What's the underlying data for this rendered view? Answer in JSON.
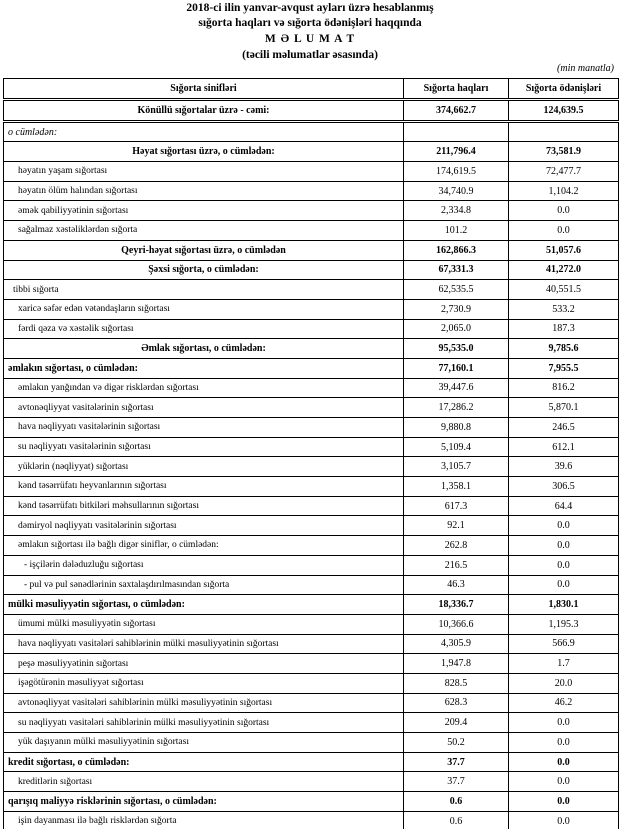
{
  "header": {
    "line1": "2018-ci ilin yanvar-avqust ayları üzrə hesablanmış",
    "line2": "sığorta haqları və sığorta ödənişləri haqqında",
    "line3": "M Ə L U M A T",
    "line4": "(təcili məlumatlar əsasında)",
    "unit": "(min manatla)"
  },
  "table": {
    "columns": [
      "Sığorta sinifləri",
      "Sığorta haqları",
      "Sığorta ödənişləri"
    ],
    "rows": [
      {
        "style": "total",
        "cells": [
          "Könüllü sığortalar üzrə - cəmi:",
          "374,662.7",
          "124,639.5"
        ]
      },
      {
        "style": "note",
        "cells": [
          "o cümlədən:",
          null,
          null
        ]
      },
      {
        "style": "group",
        "cells": [
          "Həyat sığortası üzrə, o cümlədən:",
          "211,796.4",
          "73,581.9"
        ]
      },
      {
        "style": "item",
        "cells": [
          "həyatın yaşam sığortası",
          "174,619.5",
          "72,477.7"
        ]
      },
      {
        "style": "item",
        "cells": [
          "həyatın ölüm halından sığortası",
          "34,740.9",
          "1,104.2"
        ]
      },
      {
        "style": "item",
        "cells": [
          "əmək qabiliyyətinin sığortası",
          "2,334.8",
          "0.0"
        ]
      },
      {
        "style": "item",
        "cells": [
          "sağalmaz xəstəliklərdən sığorta",
          "101.2",
          "0.0"
        ]
      },
      {
        "style": "group",
        "cells": [
          "Qeyri-həyat sığortası üzrə, o cümlədən",
          "162,866.3",
          "51,057.6"
        ]
      },
      {
        "style": "group",
        "cells": [
          "Şəxsi sığorta,  o cümlədən:",
          "67,331.3",
          "41,272.0"
        ]
      },
      {
        "style": "item1",
        "cells": [
          "tibbi sığorta",
          "62,535.5",
          "40,551.5"
        ]
      },
      {
        "style": "item",
        "cells": [
          "xaricə səfər edən vətəndaşların sığortası",
          "2,730.9",
          "533.2"
        ]
      },
      {
        "style": "item",
        "cells": [
          "fərdi qəza və xəstəlik sığortası",
          "2,065.0",
          "187.3"
        ]
      },
      {
        "style": "group",
        "cells": [
          "Əmlak sığortası, o cümlədən:",
          "95,535.0",
          "9,785.6"
        ]
      },
      {
        "style": "section",
        "cells": [
          "əmlakın sığortası,  o cümlədən:",
          "77,160.1",
          "7,955.5"
        ]
      },
      {
        "style": "item",
        "cells": [
          "əmlakın yanğından və digər risklərdən sığortası",
          "39,447.6",
          "816.2"
        ]
      },
      {
        "style": "item",
        "cells": [
          "avtonəqliyyat vasitələrinin sığortası",
          "17,286.2",
          "5,870.1"
        ]
      },
      {
        "style": "item",
        "cells": [
          "hava nəqliyyatı vasitələrinin sığortası",
          "9,880.8",
          "246.5"
        ]
      },
      {
        "style": "item",
        "cells": [
          "su nəqliyyatı vasitələrinin sığortası",
          "5,109.4",
          "612.1"
        ]
      },
      {
        "style": "item",
        "cells": [
          "yüklərin (nəqliyyat) sığortası",
          "3,105.7",
          "39.6"
        ]
      },
      {
        "style": "item",
        "cells": [
          "kənd təsərrüfatı heyvanlarının sığortası",
          "1,358.1",
          "306.5"
        ]
      },
      {
        "style": "item",
        "cells": [
          "kənd təsərrüfatı bitkiləri məhsullarının sığortası",
          "617.3",
          "64.4"
        ]
      },
      {
        "style": "item",
        "cells": [
          "dəmiryol nəqliyyatı vasitələrinin sığortası",
          "92.1",
          "0.0"
        ]
      },
      {
        "style": "item",
        "cells": [
          "əmlakın sığortası ilə bağlı digər siniflər,  o cümlədən:",
          "262.8",
          "0.0"
        ]
      },
      {
        "style": "sub",
        "cells": [
          "- işçilərin dələduzluğu sığortası",
          "216.5",
          "0.0"
        ]
      },
      {
        "style": "sub",
        "cells": [
          "- pul və pul sənədlərinin saxtalaşdırılmasından sığorta",
          "46.3",
          "0.0"
        ]
      },
      {
        "style": "section",
        "cells": [
          "mülki məsuliyyətin sığortası, o cümlədən:",
          "18,336.7",
          "1,830.1"
        ]
      },
      {
        "style": "item",
        "cells": [
          "ümumi mülki məsuliyyətin sığortası",
          "10,366.6",
          "1,195.3"
        ]
      },
      {
        "style": "item",
        "cells": [
          "hava nəqliyyatı vasitələri sahiblərinin mülki məsuliyyətinin sığortası",
          "4,305.9",
          "566.9"
        ]
      },
      {
        "style": "item",
        "cells": [
          "peşə məsuliyyətinin sığortası",
          "1,947.8",
          "1.7"
        ]
      },
      {
        "style": "item",
        "cells": [
          "işəgötürənin məsuliyyət sığortası",
          "828.5",
          "20.0"
        ]
      },
      {
        "style": "item",
        "cells": [
          "avtonəqliyyat vasitələri sahiblərinin mülki məsuliyyətinin sığortası",
          "628.3",
          "46.2"
        ]
      },
      {
        "style": "item",
        "cells": [
          "su nəqliyyatı vasitələri sahiblərinin mülki məsuliyyətinin sığortası",
          "209.4",
          "0.0"
        ]
      },
      {
        "style": "item",
        "cells": [
          "yük daşıyanın mülki məsuliyyətinin sığortası",
          "50.2",
          "0.0"
        ]
      },
      {
        "style": "section",
        "cells": [
          "kredit sığortası, o cümlədən:",
          "37.7",
          "0.0"
        ]
      },
      {
        "style": "item",
        "cells": [
          "kreditlərin sığortası",
          "37.7",
          "0.0"
        ]
      },
      {
        "style": "section",
        "cells": [
          "qarışıq maliyyə risklərinin sığortası,  o cümlədən:",
          "0.6",
          "0.0"
        ]
      },
      {
        "style": "item",
        "cells": [
          "işin dayanması ilə bağlı risklərdən sığorta",
          "0.6",
          "0.0"
        ]
      }
    ]
  }
}
